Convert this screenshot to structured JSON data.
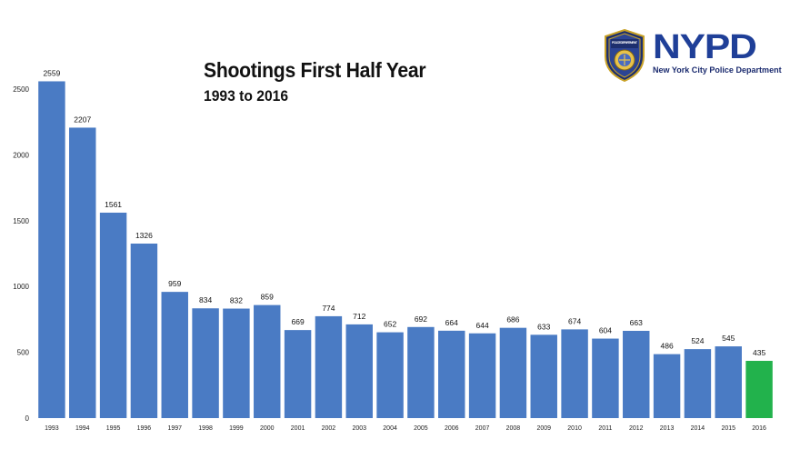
{
  "title": "Shootings First Half Year",
  "subtitle": "1993 to 2016",
  "logo": {
    "wordmark": "NYPD",
    "subtitle": "New York City Police Department",
    "badge_text": "POLICE DEPARTMENT",
    "icon": "nypd-badge-icon"
  },
  "colors": {
    "bar": "#4a7bc4",
    "highlight": "#22b24c"
  },
  "chart_data": {
    "type": "bar",
    "title": "Shootings First Half Year",
    "subtitle": "1993 to 2016",
    "xlabel": "",
    "ylabel": "",
    "categories": [
      "1993",
      "1994",
      "1995",
      "1996",
      "1997",
      "1998",
      "1999",
      "2000",
      "2001",
      "2002",
      "2003",
      "2004",
      "2005",
      "2006",
      "2007",
      "2008",
      "2009",
      "2010",
      "2011",
      "2012",
      "2013",
      "2014",
      "2015",
      "2016"
    ],
    "values": [
      2559,
      2207,
      1561,
      1326,
      959,
      834,
      832,
      859,
      669,
      774,
      712,
      652,
      692,
      664,
      644,
      686,
      633,
      674,
      604,
      663,
      486,
      524,
      545,
      435
    ],
    "data_labels": [
      "2559",
      "2207",
      "1561",
      "1326",
      "959",
      "834",
      "832",
      "859",
      "669",
      "774",
      "712",
      "652",
      "692",
      "664",
      "644",
      "686",
      "633",
      "674",
      "604",
      "663",
      "486",
      "524",
      "545",
      "435"
    ],
    "highlight_index": 23,
    "ylim": [
      0,
      2500
    ],
    "yticks": [
      0,
      500,
      1000,
      1500,
      2000,
      2500
    ],
    "ytick_labels": [
      "0",
      "500",
      "1000",
      "1500",
      "2000",
      "2500"
    ],
    "grid": false,
    "legend": "none"
  }
}
